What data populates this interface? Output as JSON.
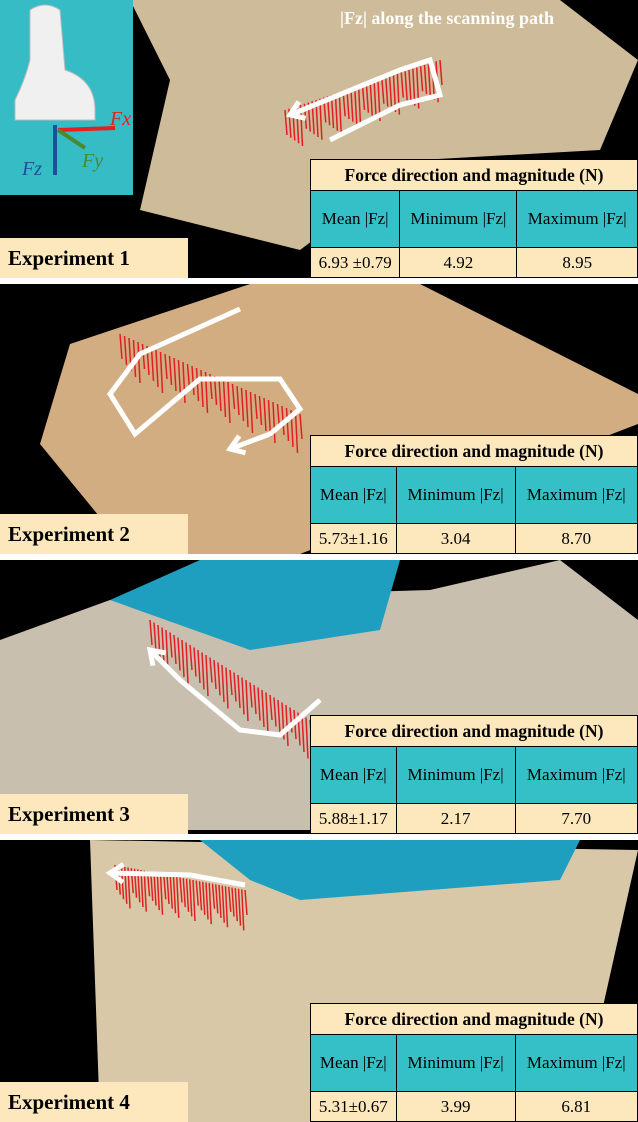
{
  "annotation": "|Fz| along the scanning path",
  "inset": {
    "fx": "Fx",
    "fy": "Fy",
    "fz": "Fz"
  },
  "panels": [
    {
      "label": "Experiment 1",
      "table": {
        "title": "Force direction and magnitude (N)",
        "columns": [
          "Mean |Fz|",
          "Minimum |Fz|",
          "Maximum |Fz|"
        ],
        "values": [
          "6.93 ±0.79",
          "4.92",
          "8.95"
        ]
      }
    },
    {
      "label": "Experiment 2",
      "table": {
        "title": "Force direction and magnitude (N)",
        "columns": [
          "Mean |Fz|",
          "Minimum |Fz|",
          "Maximum |Fz|"
        ],
        "values": [
          "5.73±1.16",
          "3.04",
          "8.70"
        ]
      }
    },
    {
      "label": "Experiment 3",
      "table": {
        "title": "Force direction and magnitude (N)",
        "columns": [
          "Mean |Fz|",
          "Minimum |Fz|",
          "Maximum |Fz|"
        ],
        "values": [
          "5.88±1.17",
          "2.17",
          "7.70"
        ]
      }
    },
    {
      "label": "Experiment 4",
      "table": {
        "title": "Force direction and magnitude (N)",
        "columns": [
          "Mean |Fz|",
          "Minimum |Fz|",
          "Maximum |Fz|"
        ],
        "values": [
          "5.31±0.67",
          "3.99",
          "6.81"
        ]
      }
    }
  ]
}
